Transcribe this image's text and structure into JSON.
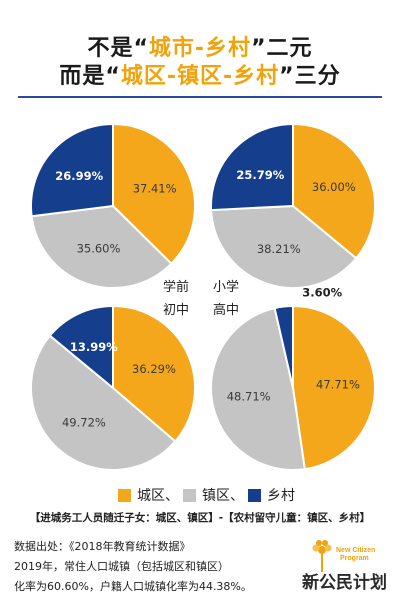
{
  "title": {
    "line1_pre": "不是“",
    "line1_hl": "城市-乡村",
    "line1_post": "”二元",
    "line2_pre": "而是“",
    "line2_hl": "城区",
    "line2_mid": "-镇区-乡村",
    "line2_post": "”三分"
  },
  "colors": {
    "urban": "#f4a71a",
    "town": "#c4c4c4",
    "rural": "#153e8c",
    "accent": "#f0a30a",
    "rule": "#2a4aa0"
  },
  "chart_data": [
    {
      "type": "pie",
      "name": "学前",
      "categories": [
        "城区",
        "镇区",
        "乡村"
      ],
      "values": [
        37.41,
        35.6,
        26.99
      ],
      "labels": [
        "37.41%",
        "35.60%",
        "26.99%"
      ]
    },
    {
      "type": "pie",
      "name": "小学",
      "categories": [
        "城区",
        "镇区",
        "乡村"
      ],
      "values": [
        36.0,
        38.21,
        25.79
      ],
      "labels": [
        "36.00%",
        "38.21%",
        "25.79%"
      ]
    },
    {
      "type": "pie",
      "name": "初中",
      "categories": [
        "城区",
        "镇区",
        "乡村"
      ],
      "values": [
        36.29,
        49.72,
        13.99
      ],
      "labels": [
        "36.29%",
        "49.72%",
        "13.99%"
      ]
    },
    {
      "type": "pie",
      "name": "高中",
      "categories": [
        "城区",
        "镇区",
        "乡村"
      ],
      "values": [
        47.71,
        48.71,
        3.6
      ],
      "labels": [
        "47.71%",
        "48.71%",
        "3.60%"
      ]
    }
  ],
  "legend": {
    "urban": "城区、",
    "town": "镇区、",
    "rural": "乡村"
  },
  "note": "【进城务工人员随迁子女：城区、镇区】-【农村留守儿童：镇区、乡村】",
  "source": {
    "line1": "数据出处：《2018年教育统计数据》",
    "line2": "2019年，常住人口城镇（包括城区和镇区）",
    "line3": "化率为60.60%，户籍人口城镇化率为44.38%。"
  },
  "logo": {
    "text": "新公民计划",
    "sub1": "New Citizen",
    "sub2": "Program"
  }
}
